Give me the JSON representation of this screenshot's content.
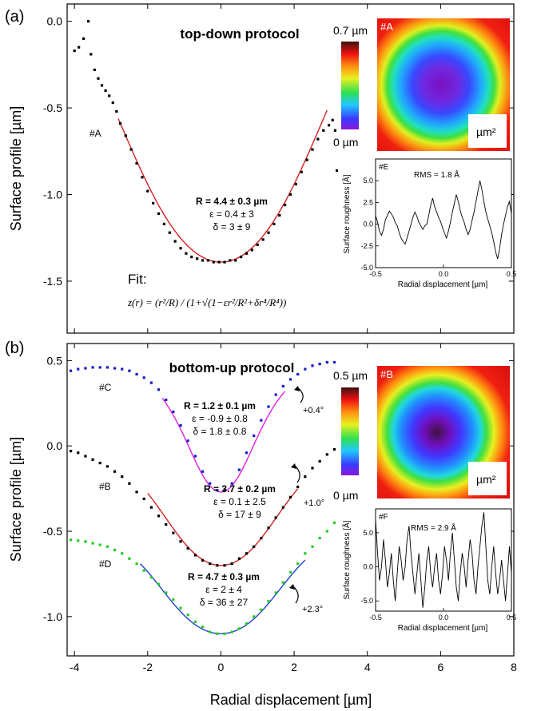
{
  "figure": {
    "shared_xlabel": "Radial displacement [µm]",
    "shared_xticks": [
      "-4",
      "-2",
      "0",
      "2",
      "4",
      "6",
      "8"
    ]
  },
  "chart_data": [
    {
      "panel_label": "(a)",
      "type": "scatter",
      "title": "top-down protocol",
      "ylabel": "Surface profile [µm]",
      "xlabel": "Radial displacement [µm]",
      "xlim": [
        -4.2,
        8
      ],
      "ylim": [
        -1.8,
        0.1
      ],
      "yticks": [
        "0.0",
        "-0.5",
        "-1.0",
        "-1.5"
      ],
      "xticks": [
        "-4",
        "-2",
        "0",
        "2",
        "4",
        "6",
        "8"
      ],
      "annotations": {
        "profile_label": "#A",
        "fit_params": [
          "R = 4.4 ± 0.3 µm",
          "ε = 0.4 ± 3",
          "δ = 3 ± 9"
        ],
        "fit_label": "Fit:",
        "fit_formula": "z(r) = (r²/R) / (1+√(1−εr²/R²+δr⁴/R⁴))"
      },
      "series": [
        {
          "name": "#A",
          "color": "#000000",
          "points": [
            [
              -4.0,
              -0.17
            ],
            [
              -3.88,
              -0.15
            ],
            [
              -3.75,
              -0.1
            ],
            [
              -3.62,
              0.0
            ],
            [
              -3.55,
              -0.19
            ],
            [
              -3.45,
              -0.28
            ],
            [
              -3.35,
              -0.33
            ],
            [
              -3.25,
              -0.37
            ],
            [
              -3.15,
              -0.4
            ],
            [
              -3.05,
              -0.43
            ],
            [
              -2.95,
              -0.47
            ],
            [
              -2.85,
              -0.52
            ],
            [
              -2.75,
              -0.59
            ],
            [
              -2.6,
              -0.66
            ],
            [
              -2.45,
              -0.74
            ],
            [
              -2.3,
              -0.82
            ],
            [
              -2.15,
              -0.9
            ],
            [
              -2.0,
              -0.98
            ],
            [
              -1.85,
              -1.05
            ],
            [
              -1.7,
              -1.11
            ],
            [
              -1.55,
              -1.17
            ],
            [
              -1.4,
              -1.22
            ],
            [
              -1.25,
              -1.27
            ],
            [
              -1.1,
              -1.31
            ],
            [
              -0.95,
              -1.34
            ],
            [
              -0.8,
              -1.36
            ],
            [
              -0.65,
              -1.37
            ],
            [
              -0.5,
              -1.38
            ],
            [
              -0.35,
              -1.38
            ],
            [
              -0.2,
              -1.39
            ],
            [
              -0.05,
              -1.39
            ],
            [
              0.1,
              -1.39
            ],
            [
              0.25,
              -1.38
            ],
            [
              0.4,
              -1.38
            ],
            [
              0.55,
              -1.36
            ],
            [
              0.7,
              -1.34
            ],
            [
              0.85,
              -1.32
            ],
            [
              1.0,
              -1.29
            ],
            [
              1.15,
              -1.26
            ],
            [
              1.3,
              -1.22
            ],
            [
              1.45,
              -1.17
            ],
            [
              1.6,
              -1.12
            ],
            [
              1.75,
              -1.06
            ],
            [
              1.9,
              -1.0
            ],
            [
              2.05,
              -0.94
            ],
            [
              2.2,
              -0.87
            ],
            [
              2.35,
              -0.8
            ],
            [
              2.5,
              -0.74
            ],
            [
              2.65,
              -0.68
            ],
            [
              2.8,
              -0.63
            ],
            [
              2.95,
              -0.6
            ],
            [
              3.05,
              -0.57
            ],
            [
              3.12,
              -0.63
            ]
          ]
        }
      ],
      "fit_curve": {
        "color": "#d62020",
        "R": 4.4,
        "eps": 0.4,
        "delta": 3,
        "offset": -1.39,
        "xrange": [
          -2.8,
          2.9
        ]
      },
      "insets": [
        {
          "type": "heatmap",
          "label": "#A",
          "colorbar_max": "0.7 µm",
          "colorbar_min": "0 µm",
          "scale_label": "µm²"
        },
        {
          "type": "line",
          "label": "#E",
          "rms": "RMS = 1.8 Å",
          "xlabel": "Radial displacement [µm]",
          "ylabel": "Surface roughness [Å]",
          "xlim": [
            -0.5,
            0.5
          ],
          "ylim": [
            -5,
            7.5
          ],
          "xticks": [
            "-0.5",
            "0.0",
            "0.5"
          ],
          "yticks": [
            "5.0",
            "2.5",
            "0.0",
            "-2.5",
            "-5.0"
          ],
          "values": [
            1.0,
            0.2,
            -0.8,
            -1.3,
            -0.6,
            0.5,
            1.0,
            1.5,
            1.2,
            0.8,
            0.2,
            -0.2,
            -1.0,
            -1.6,
            -2.0,
            -2.3,
            -1.6,
            -0.8,
            0.0,
            0.8,
            1.4,
            0.9,
            0.2,
            -0.2,
            -0.6,
            -0.2,
            0.0,
            1.0,
            2.2,
            3.0,
            2.0,
            1.4,
            0.8,
            0.3,
            -0.4,
            -1.0,
            -1.6,
            -0.8,
            0.2,
            1.4,
            2.4,
            3.4,
            2.6,
            1.6,
            0.8,
            0.2,
            -0.6,
            -1.2,
            -0.6,
            0.4,
            1.4,
            2.6,
            3.8,
            5.0,
            4.0,
            2.6,
            1.4,
            0.6,
            -0.2,
            -1.0,
            -2.0,
            -3.2,
            -4.0,
            -2.8,
            -1.2,
            0.0,
            1.0,
            2.0,
            2.6,
            1.2
          ]
        }
      ]
    },
    {
      "panel_label": "(b)",
      "type": "scatter",
      "title": "bottom-up protocol",
      "ylabel": "Surface profile [µm]",
      "xlabel": "Radial displacement [µm]",
      "xlim": [
        -4.2,
        8
      ],
      "ylim": [
        -1.23,
        0.6
      ],
      "yticks": [
        "0.5",
        "0.0",
        "-0.5",
        "-1.0"
      ],
      "xticks": [
        "-4",
        "-2",
        "0",
        "2",
        "4",
        "6",
        "8"
      ],
      "annotations": {
        "fit_params_C": [
          "R = 1.2 ± 0.1 µm",
          "ε = -0.9 ± 0.8",
          "δ = 1.8 ± 0.8"
        ],
        "fit_params_B": [
          "R = 3.7 ± 0.2 µm",
          "ε = 0.1 ± 2.5",
          "δ = 17 ± 9"
        ],
        "fit_params_D": [
          "R = 4.7 ± 0.3 µm",
          "ε = 2 ± 4",
          "δ = 36 ± 27"
        ],
        "angles": [
          "+0.4°",
          "+1.0°",
          "+2.3°"
        ]
      },
      "series": [
        {
          "name": "#C",
          "color": "#1a1acc",
          "points": [
            [
              -4.1,
              0.44
            ],
            [
              -3.9,
              0.45
            ],
            [
              -3.7,
              0.455
            ],
            [
              -3.5,
              0.46
            ],
            [
              -3.3,
              0.46
            ],
            [
              -3.1,
              0.46
            ],
            [
              -2.9,
              0.455
            ],
            [
              -2.7,
              0.45
            ],
            [
              -2.5,
              0.44
            ],
            [
              -2.3,
              0.42
            ],
            [
              -2.1,
              0.4
            ],
            [
              -1.9,
              0.37
            ],
            [
              -1.7,
              0.33
            ],
            [
              -1.5,
              0.27
            ],
            [
              -1.3,
              0.2
            ],
            [
              -1.1,
              0.12
            ],
            [
              -0.9,
              0.03
            ],
            [
              -0.7,
              -0.06
            ],
            [
              -0.5,
              -0.15
            ],
            [
              -0.3,
              -0.22
            ],
            [
              -0.1,
              -0.26
            ],
            [
              0.1,
              -0.26
            ],
            [
              0.3,
              -0.22
            ],
            [
              0.5,
              -0.14
            ],
            [
              0.7,
              -0.04
            ],
            [
              0.9,
              0.06
            ],
            [
              1.1,
              0.15
            ],
            [
              1.3,
              0.23
            ],
            [
              1.5,
              0.3
            ],
            [
              1.7,
              0.35
            ],
            [
              1.9,
              0.39
            ],
            [
              2.1,
              0.42
            ],
            [
              2.3,
              0.45
            ],
            [
              2.5,
              0.47
            ],
            [
              2.7,
              0.48
            ],
            [
              2.9,
              0.49
            ],
            [
              3.1,
              0.49
            ]
          ]
        },
        {
          "name": "#B",
          "color": "#000000",
          "points": [
            [
              -4.1,
              -0.03
            ],
            [
              -3.9,
              -0.04
            ],
            [
              -3.7,
              -0.06
            ],
            [
              -3.5,
              -0.08
            ],
            [
              -3.3,
              -0.1
            ],
            [
              -3.1,
              -0.12
            ],
            [
              -2.9,
              -0.15
            ],
            [
              -2.7,
              -0.18
            ],
            [
              -2.5,
              -0.22
            ],
            [
              -2.3,
              -0.27
            ],
            [
              -2.1,
              -0.31
            ],
            [
              -1.9,
              -0.36
            ],
            [
              -1.7,
              -0.41
            ],
            [
              -1.5,
              -0.46
            ],
            [
              -1.3,
              -0.51
            ],
            [
              -1.1,
              -0.56
            ],
            [
              -0.9,
              -0.6
            ],
            [
              -0.7,
              -0.64
            ],
            [
              -0.5,
              -0.67
            ],
            [
              -0.3,
              -0.69
            ],
            [
              -0.1,
              -0.7
            ],
            [
              0.1,
              -0.7
            ],
            [
              0.3,
              -0.69
            ],
            [
              0.5,
              -0.66
            ],
            [
              0.7,
              -0.63
            ],
            [
              0.9,
              -0.59
            ],
            [
              1.1,
              -0.54
            ],
            [
              1.3,
              -0.48
            ],
            [
              1.5,
              -0.42
            ],
            [
              1.7,
              -0.36
            ],
            [
              1.9,
              -0.3
            ],
            [
              2.1,
              -0.24
            ],
            [
              2.3,
              -0.18
            ],
            [
              2.5,
              -0.13
            ],
            [
              2.7,
              -0.09
            ],
            [
              2.9,
              -0.05
            ],
            [
              3.1,
              -0.02
            ]
          ]
        },
        {
          "name": "#D",
          "color": "#22cc22",
          "points": [
            [
              -4.1,
              -0.55
            ],
            [
              -3.9,
              -0.555
            ],
            [
              -3.7,
              -0.56
            ],
            [
              -3.5,
              -0.57
            ],
            [
              -3.3,
              -0.58
            ],
            [
              -3.1,
              -0.59
            ],
            [
              -2.9,
              -0.61
            ],
            [
              -2.7,
              -0.63
            ],
            [
              -2.5,
              -0.66
            ],
            [
              -2.3,
              -0.69
            ],
            [
              -2.1,
              -0.73
            ],
            [
              -1.9,
              -0.77
            ],
            [
              -1.7,
              -0.81
            ],
            [
              -1.5,
              -0.86
            ],
            [
              -1.3,
              -0.9
            ],
            [
              -1.1,
              -0.95
            ],
            [
              -0.9,
              -0.99
            ],
            [
              -0.7,
              -1.03
            ],
            [
              -0.5,
              -1.06
            ],
            [
              -0.3,
              -1.09
            ],
            [
              -0.1,
              -1.1
            ],
            [
              0.1,
              -1.1
            ],
            [
              0.3,
              -1.09
            ],
            [
              0.5,
              -1.07
            ],
            [
              0.7,
              -1.04
            ],
            [
              0.9,
              -1.0
            ],
            [
              1.1,
              -0.96
            ],
            [
              1.3,
              -0.91
            ],
            [
              1.5,
              -0.86
            ],
            [
              1.7,
              -0.8
            ],
            [
              1.9,
              -0.74
            ],
            [
              2.1,
              -0.69
            ],
            [
              2.3,
              -0.63
            ],
            [
              2.5,
              -0.59
            ],
            [
              2.7,
              -0.54
            ],
            [
              2.9,
              -0.5
            ],
            [
              3.1,
              -0.45
            ]
          ]
        }
      ],
      "fit_curves": [
        {
          "for": "#C",
          "color": "#e020e0",
          "R": 1.2,
          "eps": -0.9,
          "delta": 1.8,
          "offset": -0.27,
          "xrange": [
            -1.6,
            1.75
          ]
        },
        {
          "for": "#B",
          "color": "#d62020",
          "R": 3.7,
          "eps": 0.1,
          "delta": 17,
          "offset": -0.7,
          "xrange": [
            -2.0,
            2.1
          ]
        },
        {
          "for": "#D",
          "color": "#2040d0",
          "R": 4.7,
          "eps": 2,
          "delta": 36,
          "offset": -1.1,
          "xrange": [
            -2.2,
            2.3
          ]
        }
      ],
      "insets": [
        {
          "type": "heatmap",
          "label": "#B",
          "colorbar_max": "0.5 µm",
          "colorbar_min": "0 µm",
          "scale_label": "µm²"
        },
        {
          "type": "line",
          "label": "#F",
          "rms": "RMS = 2.9 Å",
          "xlabel": "Radial displacement [µm]",
          "ylabel": "Surface roughness [Å]",
          "xlim": [
            -0.5,
            0.5
          ],
          "ylim": [
            -6.5,
            8.5
          ],
          "xticks": [
            "-0.5",
            "0.0",
            "0.5"
          ],
          "yticks": [
            "5.0",
            "0.0",
            "-5.0"
          ],
          "values": [
            7.0,
            2.0,
            -2.0,
            0.0,
            4.0,
            1.0,
            -3.0,
            -1.0,
            2.0,
            -2.0,
            -5.0,
            -1.0,
            3.0,
            1.0,
            -2.0,
            0.0,
            4.0,
            6.0,
            2.0,
            -1.0,
            -4.0,
            -1.0,
            2.0,
            -2.0,
            -6.0,
            -3.0,
            1.0,
            3.0,
            -1.0,
            -3.0,
            0.0,
            2.0,
            -2.0,
            -4.0,
            -1.0,
            3.0,
            1.0,
            -2.0,
            2.0,
            5.0,
            1.0,
            -3.0,
            -5.0,
            -1.0,
            2.0,
            0.0,
            -3.0,
            1.0,
            4.0,
            2.0,
            -2.0,
            -4.0,
            0.0,
            3.0,
            6.0,
            8.0,
            3.0,
            -2.0,
            -4.0,
            0.0,
            3.0,
            -1.0,
            -4.0,
            -2.0,
            1.0,
            -2.0,
            -5.0,
            -1.0,
            3.0,
            -1.0
          ]
        }
      ]
    }
  ]
}
